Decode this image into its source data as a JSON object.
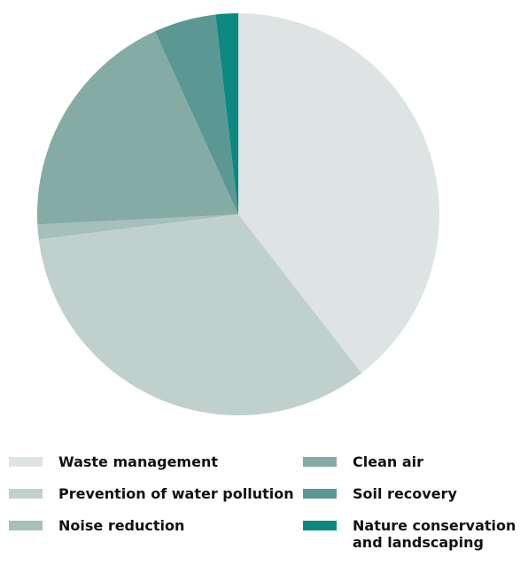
{
  "chart_data": {
    "type": "pie",
    "title": "",
    "start_angle_deg": 0,
    "direction": "clockwise",
    "slices": [
      {
        "label": "Waste management",
        "value": 39.5,
        "color": "#dde4e3"
      },
      {
        "label": "Prevention of water pollution",
        "value": 33.5,
        "color": "#c0d1cd"
      },
      {
        "label": "Noise reduction",
        "value": 1.2,
        "color": "#a5c0bb"
      },
      {
        "label": "Clean air",
        "value": 19.0,
        "color": "#84aba4"
      },
      {
        "label": "Soil recovery",
        "value": 5.0,
        "color": "#5b9893"
      },
      {
        "label": "Nature conservation and landscaping",
        "value": 1.8,
        "color": "#0c8880"
      }
    ],
    "legend": {
      "placement": "bottom",
      "columns": 2
    }
  }
}
